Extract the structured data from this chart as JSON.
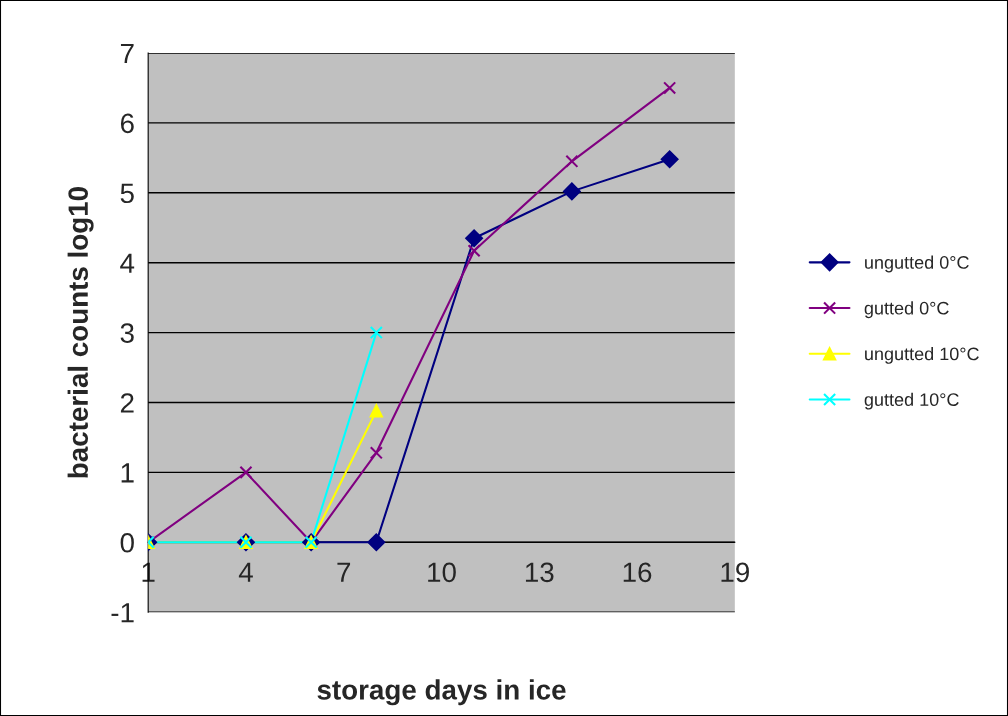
{
  "chart_data": {
    "type": "line",
    "xlabel": "storage days in ice",
    "ylabel": "bacterial counts log10",
    "xlim": [
      1,
      19
    ],
    "xticks": [
      1,
      4,
      7,
      10,
      13,
      16,
      19
    ],
    "ylim": [
      -1,
      7
    ],
    "yticks": [
      -1,
      0,
      1,
      2,
      3,
      4,
      5,
      6,
      7
    ],
    "grid": "y",
    "legend": "right",
    "series": [
      {
        "name": "ungutted 0°C",
        "color": "#000080",
        "marker": "diamond",
        "x": [
          1,
          4,
          6,
          8,
          11,
          14,
          17
        ],
        "values": [
          0,
          0,
          0,
          0,
          4.35,
          5.02,
          5.48
        ]
      },
      {
        "name": "gutted 0°C",
        "color": "#800080",
        "marker": "cross",
        "x": [
          1,
          4,
          6,
          8,
          11,
          14,
          17
        ],
        "values": [
          0,
          1.0,
          0,
          1.28,
          4.17,
          5.45,
          6.5
        ]
      },
      {
        "name": "ungutted 10°C",
        "color": "#ffff00",
        "marker": "triangle",
        "x": [
          1,
          4,
          6,
          8
        ],
        "values": [
          0,
          0,
          0,
          1.88
        ]
      },
      {
        "name": "gutted 10°C",
        "color": "#00ffff",
        "marker": "cross",
        "x": [
          1,
          4,
          6,
          8
        ],
        "values": [
          0,
          0,
          0,
          3.0
        ]
      }
    ]
  }
}
